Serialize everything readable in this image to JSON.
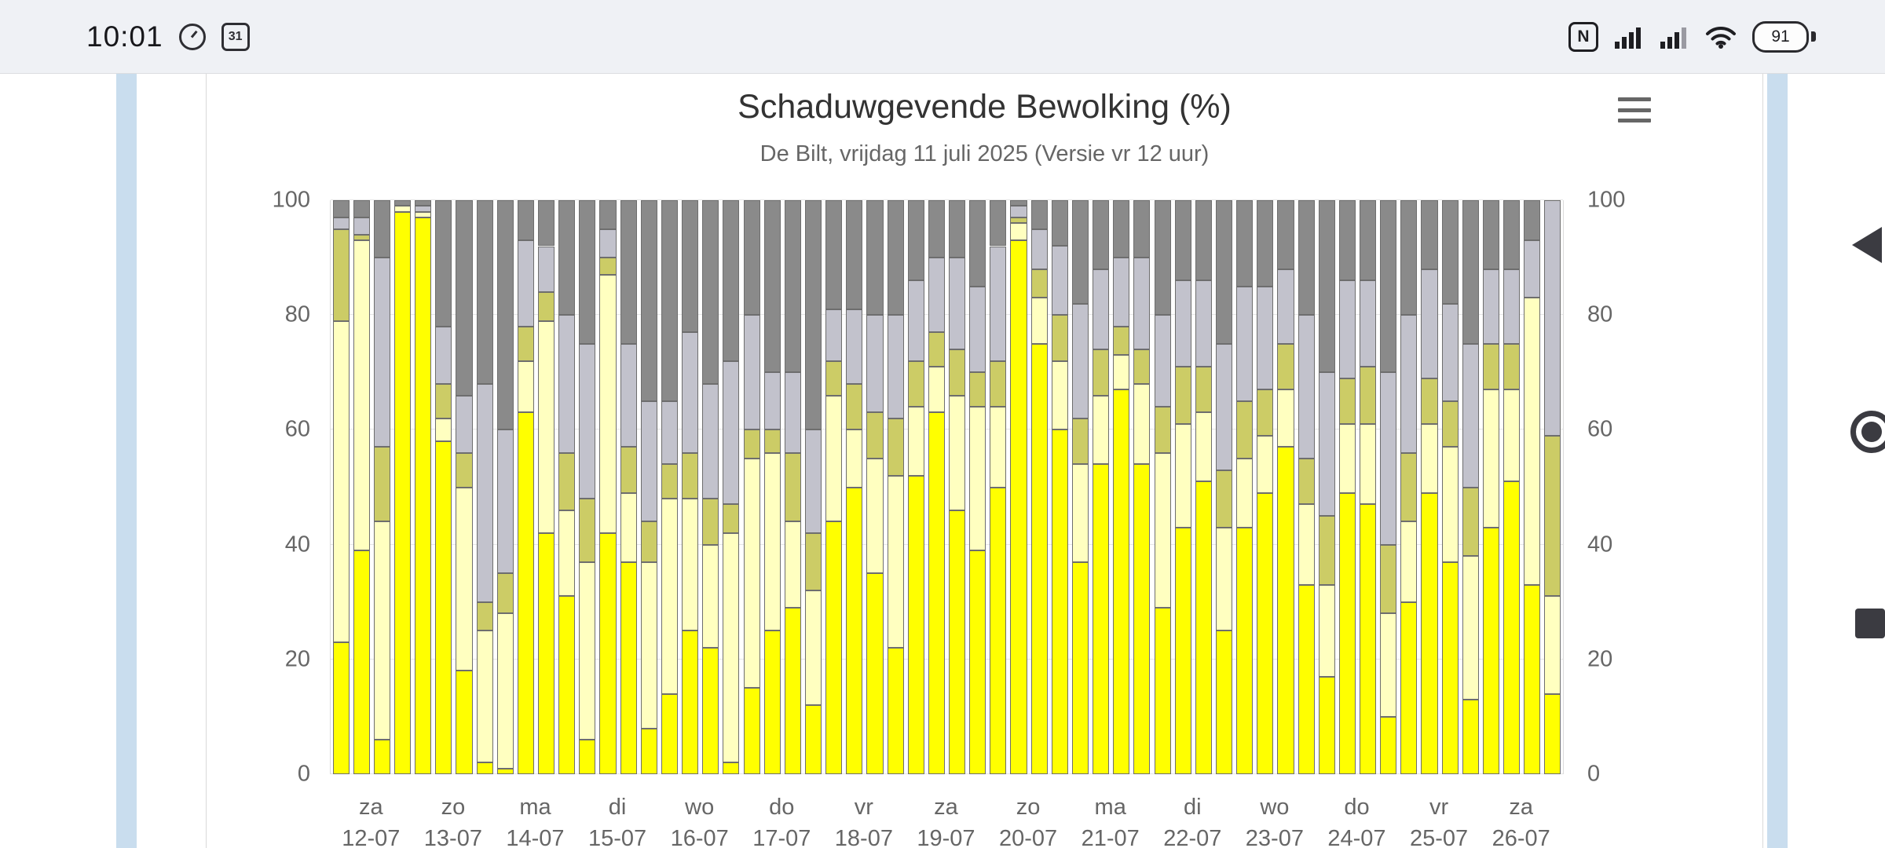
{
  "status_bar": {
    "time": "10:01",
    "calendar_day": "31",
    "nfc_letter": "N",
    "battery_percent": "91"
  },
  "chart_data": {
    "type": "bar",
    "stacked": true,
    "title": "Schaduwgevende Bewolking (%)",
    "subtitle": "De Bilt, vrijdag 11 juli 2025 (Versie vr 12 uur)",
    "xlabel": "",
    "ylabel": "",
    "ylim": [
      0,
      100
    ],
    "yticks": [
      0,
      20,
      40,
      60,
      80,
      100
    ],
    "grid": true,
    "legend": "none",
    "bars_per_day": 4,
    "categories": [
      {
        "day": "za",
        "date": "12-07"
      },
      {
        "day": "zo",
        "date": "13-07"
      },
      {
        "day": "ma",
        "date": "14-07"
      },
      {
        "day": "di",
        "date": "15-07"
      },
      {
        "day": "wo",
        "date": "16-07"
      },
      {
        "day": "do",
        "date": "17-07"
      },
      {
        "day": "vr",
        "date": "18-07"
      },
      {
        "day": "za",
        "date": "19-07"
      },
      {
        "day": "zo",
        "date": "20-07"
      },
      {
        "day": "ma",
        "date": "21-07"
      },
      {
        "day": "di",
        "date": "22-07"
      },
      {
        "day": "wo",
        "date": "23-07"
      },
      {
        "day": "do",
        "date": "24-07"
      },
      {
        "day": "vr",
        "date": "25-07"
      },
      {
        "day": "za",
        "date": "26-07"
      }
    ],
    "series": [
      {
        "name": "bright-yellow",
        "color": "#FFFF00",
        "values": [
          23,
          39,
          6,
          98,
          97,
          58,
          18,
          2,
          1,
          63,
          42,
          31,
          6,
          42,
          37,
          8,
          14,
          25,
          22,
          2,
          15,
          25,
          29,
          12,
          44,
          50,
          35,
          22,
          52,
          63,
          46,
          39,
          50,
          93,
          75,
          60,
          37,
          54,
          67,
          54,
          29,
          43,
          51,
          25,
          43,
          49,
          57,
          33,
          17,
          49,
          47,
          10,
          30,
          49,
          37,
          13,
          43,
          51,
          33,
          14
        ]
      },
      {
        "name": "pale-yellow",
        "color": "#FFFFC0",
        "values": [
          56,
          54,
          38,
          1,
          1,
          4,
          32,
          23,
          27,
          9,
          37,
          15,
          31,
          45,
          12,
          29,
          34,
          23,
          18,
          40,
          40,
          31,
          15,
          20,
          22,
          10,
          20,
          30,
          12,
          8,
          20,
          25,
          14,
          3,
          8,
          12,
          17,
          12,
          6,
          14,
          27,
          18,
          12,
          18,
          12,
          10,
          10,
          14,
          16,
          12,
          14,
          18,
          14,
          12,
          20,
          25,
          24,
          16,
          50,
          17
        ]
      },
      {
        "name": "olive-yellow",
        "color": "#CCCC66",
        "values": [
          16,
          1,
          13,
          0,
          0,
          6,
          6,
          5,
          7,
          6,
          5,
          10,
          11,
          3,
          8,
          7,
          6,
          8,
          8,
          5,
          5,
          4,
          12,
          10,
          6,
          8,
          8,
          10,
          8,
          6,
          8,
          6,
          8,
          1,
          5,
          8,
          8,
          8,
          5,
          6,
          8,
          10,
          8,
          10,
          10,
          8,
          8,
          8,
          12,
          8,
          10,
          12,
          12,
          8,
          8,
          12,
          8,
          8,
          0,
          28
        ]
      },
      {
        "name": "light-gray",
        "color": "#C2C2CC",
        "values": [
          2,
          3,
          33,
          0,
          1,
          10,
          10,
          38,
          25,
          15,
          8,
          24,
          27,
          5,
          18,
          21,
          11,
          21,
          20,
          25,
          20,
          10,
          14,
          18,
          9,
          13,
          17,
          18,
          14,
          13,
          16,
          15,
          20,
          2,
          7,
          12,
          20,
          14,
          12,
          16,
          16,
          15,
          15,
          22,
          20,
          18,
          13,
          25,
          25,
          17,
          15,
          30,
          24,
          19,
          17,
          25,
          13,
          13,
          10,
          41
        ]
      },
      {
        "name": "dark-gray",
        "color": "#8A8A8A",
        "values": [
          3,
          3,
          10,
          1,
          1,
          22,
          34,
          32,
          40,
          7,
          8,
          20,
          25,
          5,
          25,
          35,
          35,
          23,
          32,
          28,
          20,
          30,
          30,
          40,
          19,
          19,
          20,
          20,
          14,
          10,
          10,
          15,
          8,
          1,
          5,
          8,
          18,
          12,
          10,
          10,
          20,
          14,
          14,
          25,
          15,
          15,
          12,
          20,
          30,
          14,
          14,
          30,
          20,
          12,
          18,
          25,
          12,
          12,
          7,
          0
        ]
      }
    ]
  },
  "colors": {
    "grid": "#e6e6e6",
    "axis_label": "#666666",
    "title": "#333333",
    "subtitle": "#666666",
    "bar_border": "#6e6e6e",
    "side_strip": "#c9ddee",
    "status_bar_bg": "#eff1f5",
    "nav_icon": "#3b3b41"
  }
}
